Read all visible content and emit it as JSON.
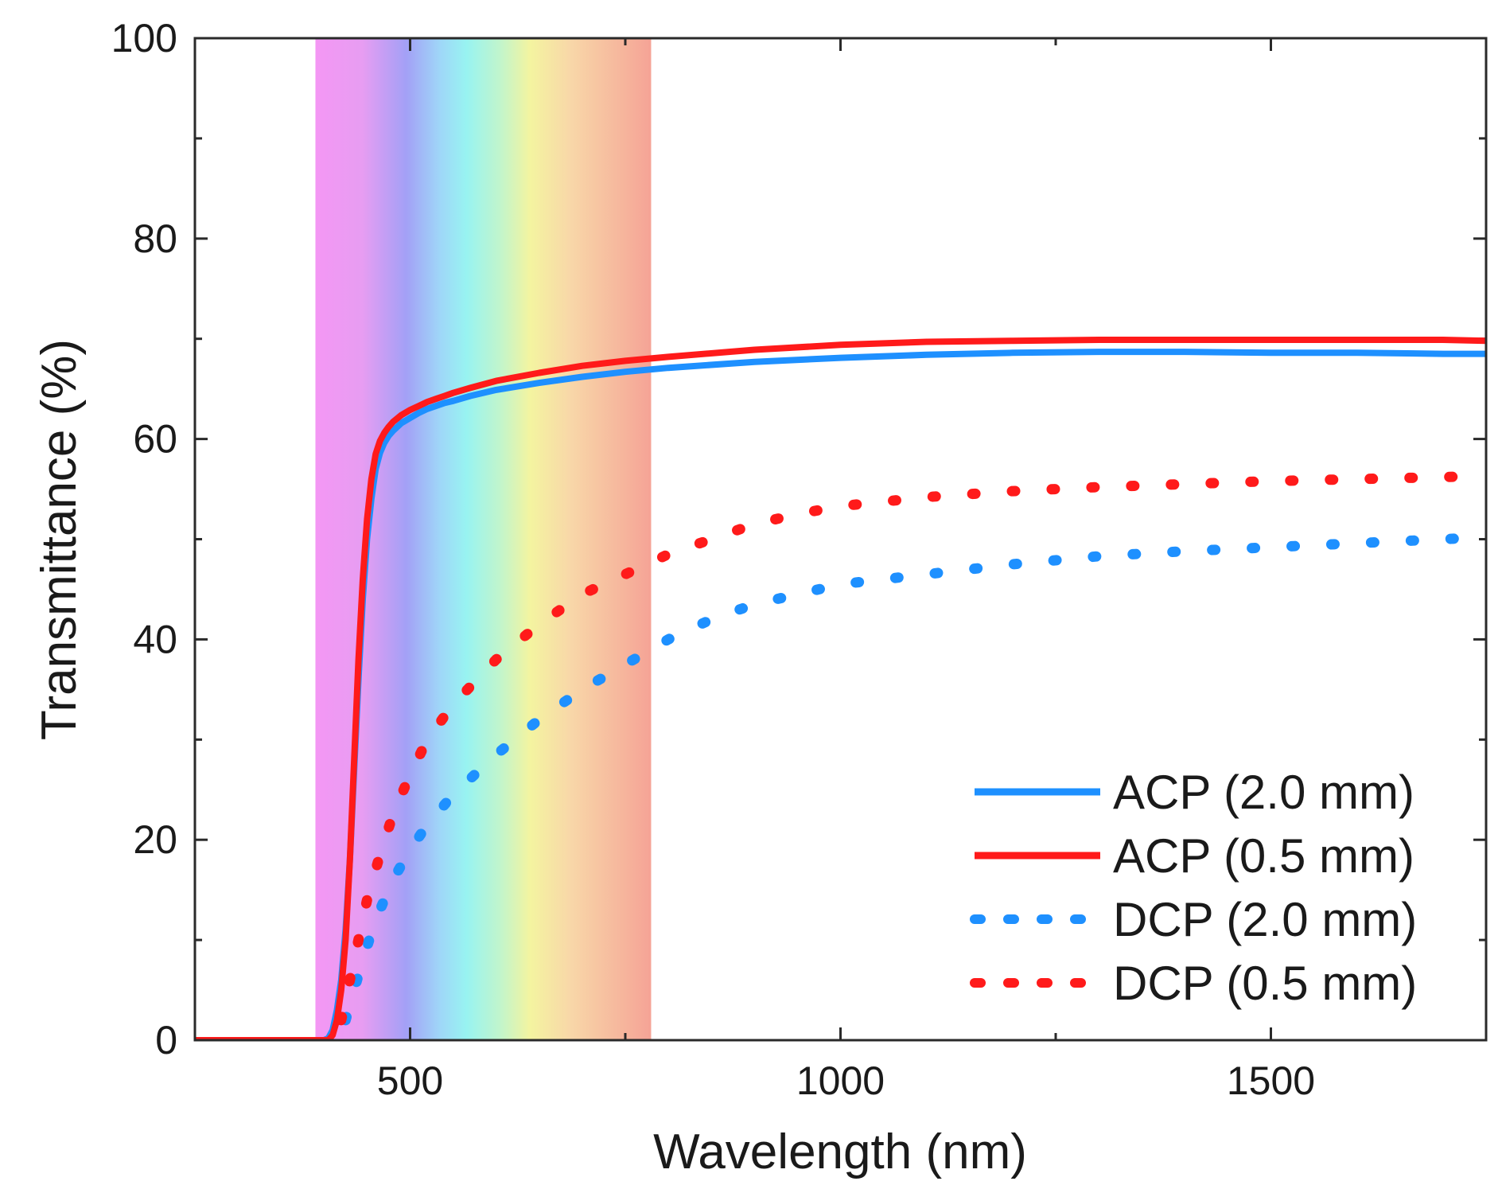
{
  "chart_data": {
    "type": "line",
    "title": "",
    "xlabel": "Wavelength (nm)",
    "ylabel": "Transmittance (%)",
    "xlim": [
      250,
      1750
    ],
    "ylim": [
      0,
      100
    ],
    "xticks": [
      500,
      1000,
      1500
    ],
    "xtick_labels": [
      "500",
      "1000",
      "1500"
    ],
    "yticks": [
      0,
      20,
      40,
      60,
      80,
      100
    ],
    "ytick_labels": [
      "0",
      "20",
      "40",
      "60",
      "80",
      "100"
    ],
    "legend_position": "bottom-right",
    "visible_spectrum_band": {
      "x_start": 390,
      "x_end": 780
    },
    "series": [
      {
        "name": "ACP (2.0 mm)",
        "style": "solid",
        "color": "#1e90ff",
        "x": [
          250,
          400,
          405,
          410,
          415,
          420,
          425,
          430,
          435,
          440,
          445,
          450,
          455,
          460,
          465,
          470,
          475,
          480,
          490,
          500,
          510,
          520,
          530,
          540,
          550,
          570,
          600,
          650,
          700,
          750,
          800,
          900,
          1000,
          1100,
          1200,
          1300,
          1400,
          1500,
          1600,
          1700,
          1750
        ],
        "y": [
          0,
          0,
          0.2,
          1,
          3,
          6,
          11,
          18,
          27,
          36,
          44,
          50,
          54,
          57,
          58.6,
          59.6,
          60.3,
          60.8,
          61.6,
          62.1,
          62.6,
          63.0,
          63.3,
          63.6,
          63.8,
          64.3,
          64.9,
          65.6,
          66.2,
          66.7,
          67.1,
          67.7,
          68.1,
          68.4,
          68.6,
          68.7,
          68.7,
          68.6,
          68.6,
          68.5,
          68.5
        ]
      },
      {
        "name": "ACP (0.5 mm)",
        "style": "solid",
        "color": "#ff1a1a",
        "x": [
          250,
          405,
          410,
          415,
          420,
          425,
          430,
          435,
          440,
          445,
          450,
          455,
          460,
          465,
          470,
          475,
          480,
          490,
          500,
          510,
          520,
          530,
          540,
          550,
          570,
          600,
          650,
          700,
          750,
          800,
          900,
          1000,
          1100,
          1200,
          1300,
          1400,
          1500,
          1600,
          1700,
          1750
        ],
        "y": [
          0,
          0,
          0.5,
          2,
          5,
          10,
          18,
          28,
          38,
          46,
          52,
          56,
          58.5,
          59.8,
          60.6,
          61.2,
          61.7,
          62.4,
          62.9,
          63.3,
          63.7,
          64.0,
          64.3,
          64.6,
          65.1,
          65.8,
          66.6,
          67.3,
          67.8,
          68.2,
          68.9,
          69.4,
          69.7,
          69.8,
          69.9,
          69.9,
          69.9,
          69.9,
          69.9,
          69.8
        ]
      },
      {
        "name": "DCP (2.0 mm)",
        "style": "dotted",
        "color": "#1e90ff",
        "x": [
          425,
          435,
          445,
          460,
          480,
          500,
          520,
          550,
          600,
          650,
          700,
          750,
          800,
          850,
          900,
          950,
          1000,
          1100,
          1200,
          1300,
          1400,
          1500,
          1600,
          1700,
          1750
        ],
        "y": [
          2,
          5,
          8,
          12,
          16,
          19,
          21.5,
          24.5,
          28.5,
          32,
          35,
          37.5,
          40,
          42,
          43.5,
          44.5,
          45.5,
          46.5,
          47.5,
          48.3,
          48.8,
          49.2,
          49.6,
          50.0,
          50.2
        ]
      },
      {
        "name": "DCP (0.5 mm)",
        "style": "dotted",
        "color": "#ff1a1a",
        "x": [
          420,
          430,
          440,
          450,
          465,
          480,
          500,
          520,
          550,
          600,
          650,
          700,
          750,
          800,
          850,
          900,
          950,
          1000,
          1100,
          1200,
          1300,
          1400,
          1500,
          1600,
          1700,
          1750
        ],
        "y": [
          2,
          6,
          10,
          14,
          18.5,
          22.5,
          26.5,
          30,
          33.5,
          38,
          41.5,
          44.5,
          46.5,
          48.5,
          50,
          51.5,
          52.5,
          53.3,
          54.2,
          54.8,
          55.2,
          55.5,
          55.8,
          56.0,
          56.2,
          56.3
        ]
      }
    ]
  }
}
